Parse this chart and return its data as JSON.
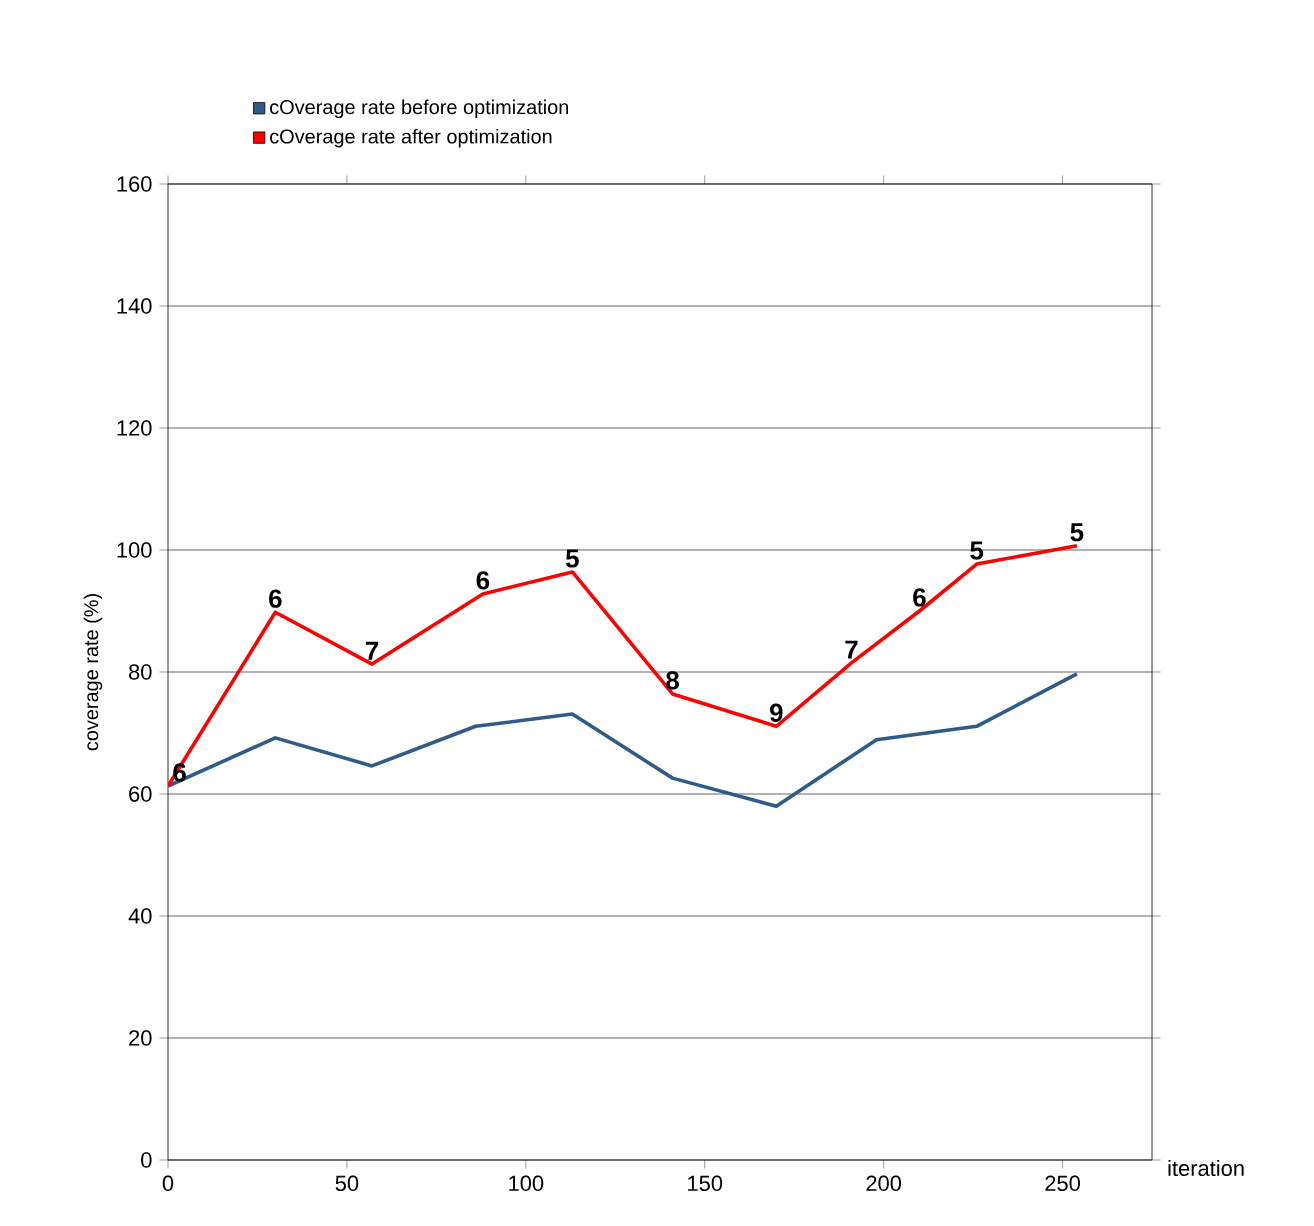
{
  "chart_data": {
    "type": "line",
    "xlabel": "iteration",
    "ylabel": "coverage rate (%)",
    "xlim": [
      0,
      275
    ],
    "ylim": [
      0,
      160
    ],
    "xticks": [
      0,
      50,
      100,
      150,
      200,
      250
    ],
    "yticks": [
      0,
      20,
      40,
      60,
      80,
      100,
      120,
      140,
      160
    ],
    "grid": "y",
    "legend": "top left",
    "marker": "none",
    "line_style": "solid",
    "series": [
      {
        "name": "cOverage rate before optimization",
        "color": "#2f5b8a",
        "x": [
          0,
          30,
          57,
          86,
          113,
          141,
          170,
          198,
          226,
          254
        ],
        "values": [
          61.3,
          69.2,
          64.6,
          71.1,
          73.1,
          62.6,
          58,
          68.9,
          71.1,
          79.7
        ]
      },
      {
        "name": "cOverage rate after optimization",
        "color": "#ff0000",
        "x": [
          0,
          30,
          57,
          88,
          113,
          141,
          170,
          191,
          210,
          226,
          254
        ],
        "values": [
          61.3,
          89.8,
          81.3,
          92.8,
          96.4,
          76.4,
          71.1,
          81.5,
          90,
          97.7,
          100.7
        ]
      }
    ],
    "annotations": [
      {
        "text": "6",
        "x": 0,
        "y": 61.3
      },
      {
        "text": "6",
        "x": 30,
        "y": 89.8
      },
      {
        "text": "7",
        "x": 57,
        "y": 81.3
      },
      {
        "text": "6",
        "x": 88,
        "y": 92.8
      },
      {
        "text": "5",
        "x": 113,
        "y": 96.4
      },
      {
        "text": "8",
        "x": 141,
        "y": 76.4
      },
      {
        "text": "9",
        "x": 170,
        "y": 71.1
      },
      {
        "text": "7",
        "x": 191,
        "y": 81.5
      },
      {
        "text": "6",
        "x": 210,
        "y": 90
      },
      {
        "text": "5",
        "x": 226,
        "y": 97.7
      },
      {
        "text": "5",
        "x": 254,
        "y": 100.7
      }
    ]
  }
}
